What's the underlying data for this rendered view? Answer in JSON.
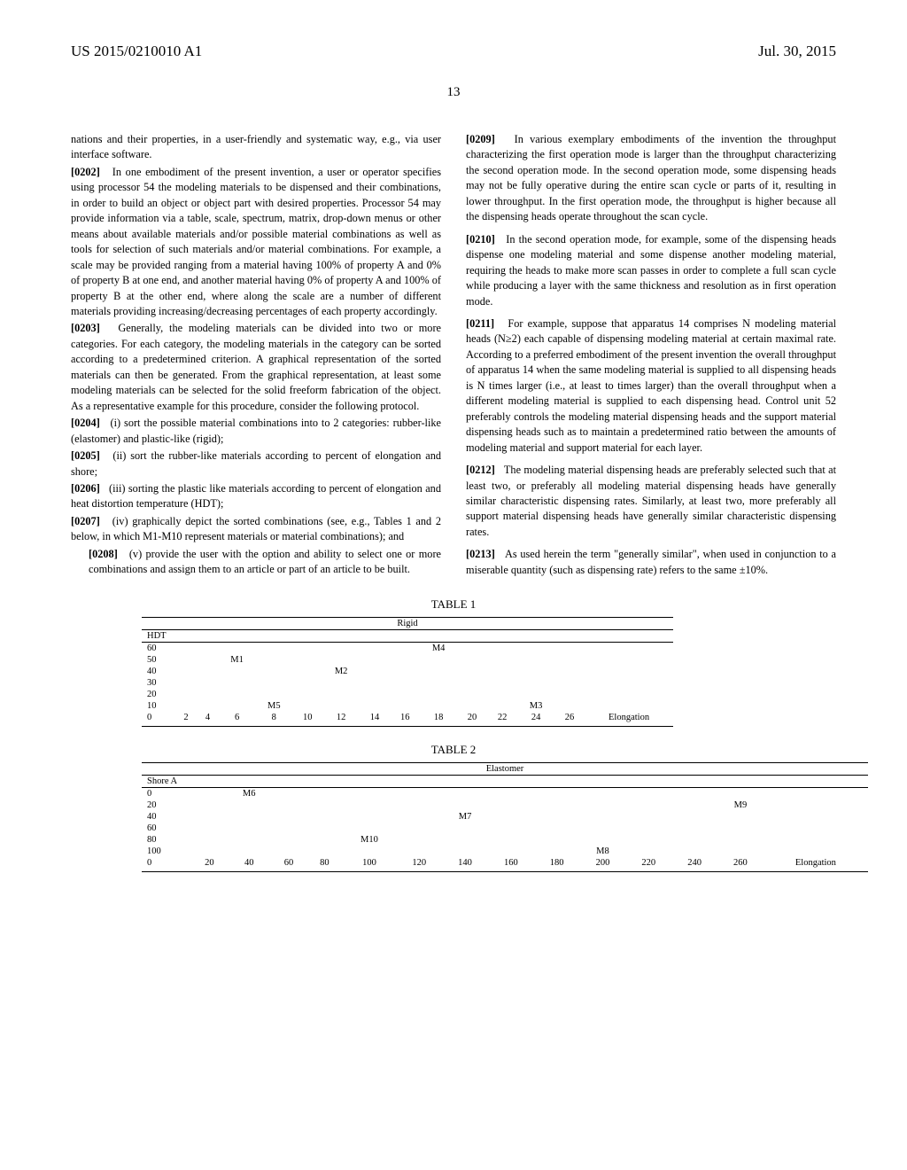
{
  "header": {
    "left": "US 2015/0210010 A1",
    "right": "Jul. 30, 2015"
  },
  "page_number": "13",
  "left_column": {
    "intro": "nations and their properties, in a user-friendly and systematic way, e.g., via user interface software.",
    "p0202": "In one embodiment of the present invention, a user or operator specifies using processor 54 the modeling materials to be dispensed and their combinations, in order to build an object or object part with desired properties. Processor 54 may provide information via a table, scale, spectrum, matrix, drop-down menus or other means about available materials and/or possible material combinations as well as tools for selection of such materials and/or material combinations. For example, a scale may be provided ranging from a material having 100% of property A and 0% of property B at one end, and another material having 0% of property A and 100% of property B at the other end, where along the scale are a number of different materials providing increasing/decreasing percentages of each property accordingly.",
    "p0203": "Generally, the modeling materials can be divided into two or more categories. For each category, the modeling materials in the category can be sorted according to a predetermined criterion. A graphical representation of the sorted materials can then be generated. From the graphical representation, at least some modeling materials can be selected for the solid freeform fabrication of the object. As a representative example for this procedure, consider the following protocol.",
    "p0204": "(i) sort the possible material combinations into to 2 categories: rubber-like (elastomer) and plastic-like (rigid);",
    "p0205": "(ii) sort the rubber-like materials according to percent of elongation and shore;",
    "p0206": "(iii) sorting the plastic like materials according to percent of elongation and heat distortion temperature (HDT);",
    "p0207": "(iv) graphically depict the sorted combinations (see, e.g., Tables 1 and 2 below, in which M1-M10 represent materials or material combinations); and",
    "p0208": "(v) provide the user with the option and ability to select one or more combinations and assign them to an article or part of an article to be built."
  },
  "right_column": {
    "p0209": "In various exemplary embodiments of the invention the throughput characterizing the first operation mode is larger than the throughput characterizing the second operation mode. In the second operation mode, some dispensing heads may not be fully operative during the entire scan cycle or parts of it, resulting in lower throughput. In the first operation mode, the throughput is higher because all the dispensing heads operate throughout the scan cycle.",
    "p0210": "In the second operation mode, for example, some of the dispensing heads dispense one modeling material and some dispense another modeling material, requiring the heads to make more scan passes in order to complete a full scan cycle while producing a layer with the same thickness and resolution as in first operation mode.",
    "p0211": "For example, suppose that apparatus 14 comprises N modeling material heads (N≥2) each capable of dispensing modeling material at certain maximal rate. According to a preferred embodiment of the present invention the overall throughput of apparatus 14 when the same modeling material is supplied to all dispensing heads is N times larger (i.e., at least to times larger) than the overall throughput when a different modeling material is supplied to each dispensing head. Control unit 52 preferably controls the modeling material dispensing heads and the support material dispensing heads such as to maintain a predetermined ratio between the amounts of modeling material and support material for each layer.",
    "p0212": "The modeling material dispensing heads are preferably selected such that at least two, or preferably all modeling material dispensing heads have generally similar characteristic dispensing rates. Similarly, at least two, more preferably all support material dispensing heads have generally similar characteristic dispensing rates.",
    "p0213": "As used herein the term \"generally similar\", when used in conjunction to a miserable quantity (such as dispensing rate) refers to the same ±10%."
  },
  "table1": {
    "caption": "TABLE 1",
    "title": "Rigid",
    "subhead": "HDT",
    "rows": [
      {
        "hdt": "60",
        "cells": [
          "",
          "",
          "",
          "",
          "",
          "",
          "",
          "",
          "M4",
          "",
          "",
          "",
          "",
          ""
        ]
      },
      {
        "hdt": "50",
        "cells": [
          "",
          "",
          "M1",
          "",
          "",
          "",
          "",
          "",
          "",
          "",
          "",
          "",
          "",
          ""
        ]
      },
      {
        "hdt": "40",
        "cells": [
          "",
          "",
          "",
          "",
          "",
          "M2",
          "",
          "",
          "",
          "",
          "",
          "",
          "",
          ""
        ]
      },
      {
        "hdt": "30",
        "cells": [
          "",
          "",
          "",
          "",
          "",
          "",
          "",
          "",
          "",
          "",
          "",
          "",
          "",
          ""
        ]
      },
      {
        "hdt": "20",
        "cells": [
          "",
          "",
          "",
          "",
          "",
          "",
          "",
          "",
          "",
          "",
          "",
          "",
          "",
          ""
        ]
      },
      {
        "hdt": "10",
        "cells": [
          "",
          "",
          "",
          "M5",
          "",
          "",
          "",
          "",
          "",
          "",
          "",
          "M3",
          "",
          ""
        ]
      },
      {
        "hdt": "0",
        "cells": [
          "2",
          "4",
          "6",
          "8",
          "10",
          "12",
          "14",
          "16",
          "18",
          "20",
          "22",
          "24",
          "26",
          "Elongation"
        ]
      }
    ]
  },
  "table2": {
    "caption": "TABLE 2",
    "title": "Elastomer",
    "subhead": "Shore A",
    "rows": [
      {
        "shore": "0",
        "cells": [
          "",
          "M6",
          "",
          "",
          "",
          "",
          "",
          "",
          "",
          "",
          "",
          "",
          "",
          ""
        ]
      },
      {
        "shore": "20",
        "cells": [
          "",
          "",
          "",
          "",
          "",
          "",
          "",
          "",
          "",
          "",
          "",
          "",
          "M9",
          ""
        ]
      },
      {
        "shore": "40",
        "cells": [
          "",
          "",
          "",
          "",
          "",
          "",
          "M7",
          "",
          "",
          "",
          "",
          "",
          "",
          ""
        ]
      },
      {
        "shore": "60",
        "cells": [
          "",
          "",
          "",
          "",
          "",
          "",
          "",
          "",
          "",
          "",
          "",
          "",
          "",
          ""
        ]
      },
      {
        "shore": "80",
        "cells": [
          "",
          "",
          "",
          "",
          "M10",
          "",
          "",
          "",
          "",
          "",
          "",
          "",
          "",
          ""
        ]
      },
      {
        "shore": "100",
        "cells": [
          "",
          "",
          "",
          "",
          "",
          "",
          "",
          "",
          "",
          "M8",
          "",
          "",
          "",
          ""
        ]
      },
      {
        "shore": "0",
        "cells": [
          "20",
          "40",
          "60",
          "80",
          "100",
          "120",
          "140",
          "160",
          "180",
          "200",
          "220",
          "240",
          "260",
          "Elongation"
        ]
      }
    ]
  },
  "labels": {
    "p0202": "[0202]",
    "p0203": "[0203]",
    "p0204": "[0204]",
    "p0205": "[0205]",
    "p0206": "[0206]",
    "p0207": "[0207]",
    "p0208": "[0208]",
    "p0209": "[0209]",
    "p0210": "[0210]",
    "p0211": "[0211]",
    "p0212": "[0212]",
    "p0213": "[0213]"
  }
}
